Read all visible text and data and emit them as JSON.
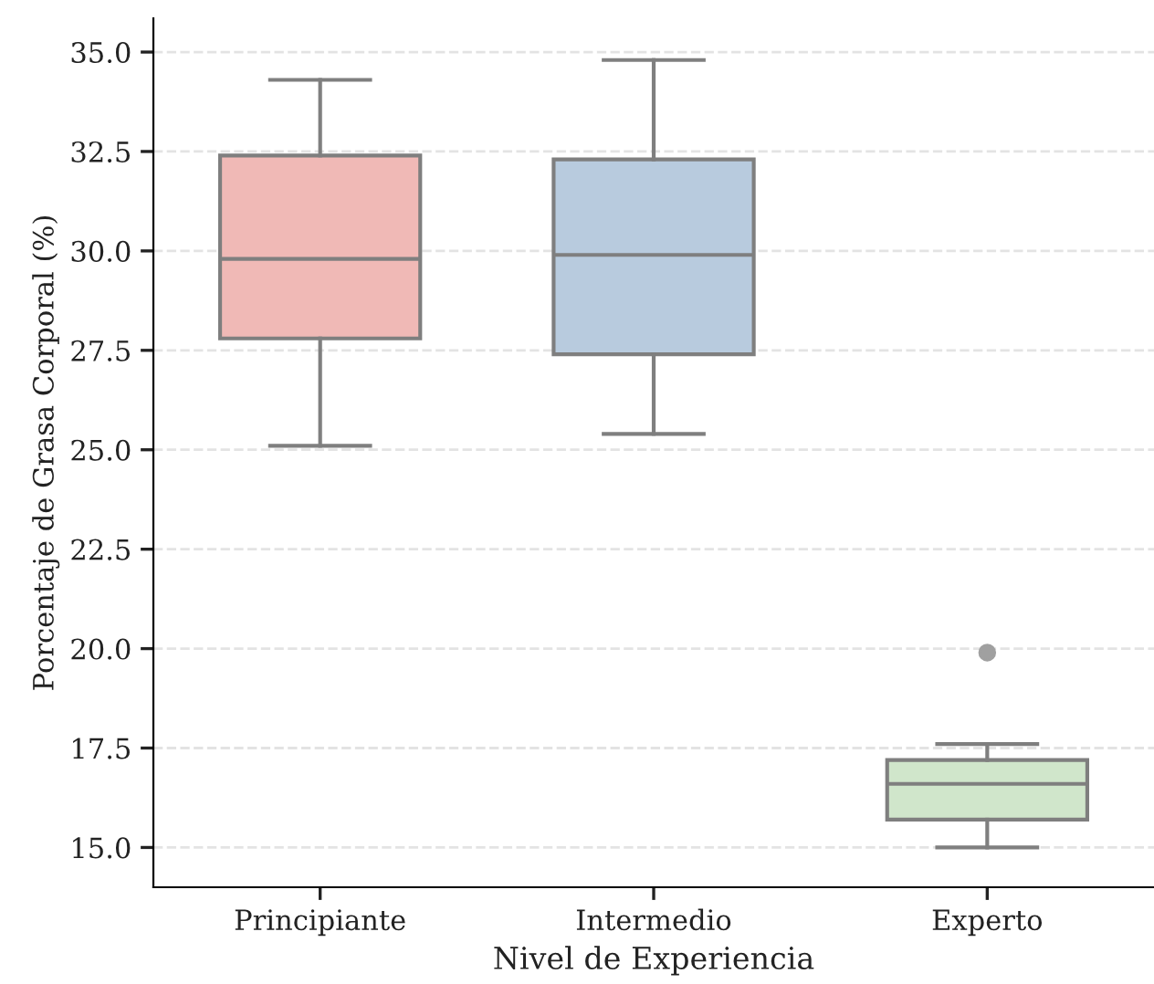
{
  "chart_data": {
    "type": "box",
    "xlabel": "Nivel de Experiencia",
    "ylabel": "Porcentaje de Grasa Corporal (%)",
    "categories": [
      "Principiante",
      "Intermedio",
      "Experto"
    ],
    "colors": [
      "#f0b9b6",
      "#b8cbde",
      "#d0e6cb"
    ],
    "boxes": [
      {
        "low": 25.1,
        "q1": 27.8,
        "median": 29.8,
        "q3": 32.4,
        "high": 34.3
      },
      {
        "low": 25.4,
        "q1": 27.4,
        "median": 29.9,
        "q3": 32.3,
        "high": 34.8
      },
      {
        "low": 15.0,
        "q1": 15.7,
        "median": 16.6,
        "q3": 17.2,
        "high": 17.6,
        "outliers": [
          19.9
        ]
      }
    ],
    "ylim": [
      14.0,
      35.85
    ],
    "yticks": [
      {
        "value": 15,
        "label": "15.0"
      },
      17.5,
      {
        "value": 20,
        "label": "20.0"
      },
      22.5,
      {
        "value": 25,
        "label": "25.0"
      },
      27.5,
      {
        "value": 30,
        "label": "30.0"
      },
      32.5,
      {
        "value": 35,
        "label": "35.0"
      }
    ],
    "grid": "y"
  }
}
